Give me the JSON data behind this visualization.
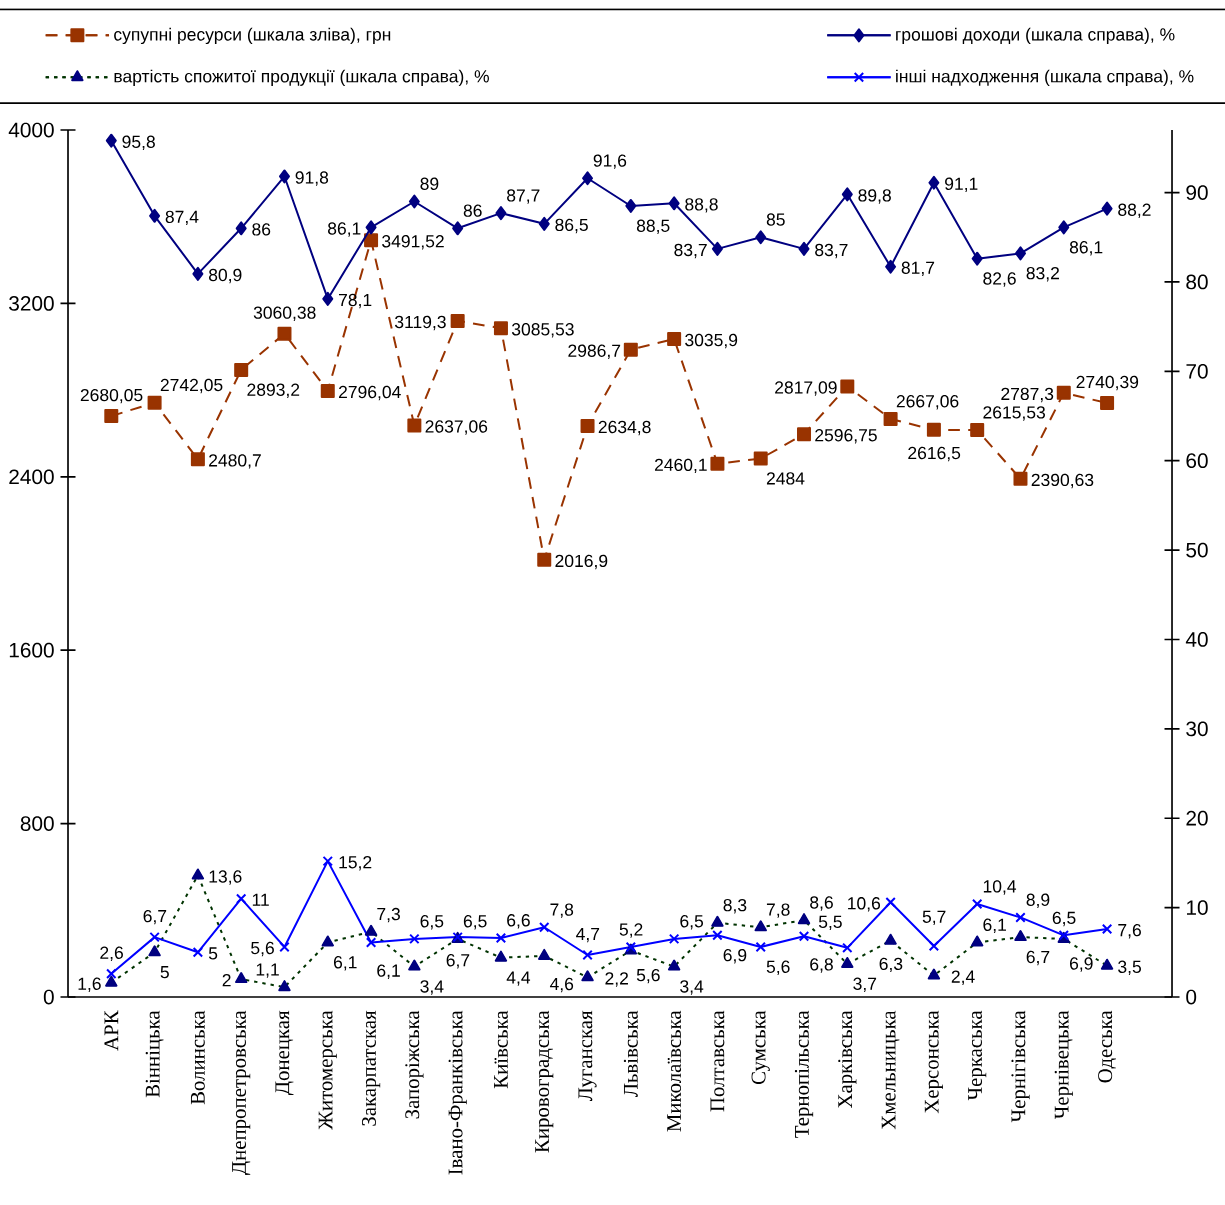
{
  "chart_data": {
    "type": "line",
    "categories": [
      "АРК",
      "Вінніцька",
      "Волинська",
      "Днепропетровська",
      "Донецкая",
      "Житомерська",
      "Закарпатская",
      "Запоріжська",
      "Івано-Франківська",
      "Київська",
      "Кировоградська",
      "Луганская",
      "Львівська",
      "Миколаївська",
      "Полтавська",
      "Сумська",
      "Тернопільська",
      "Харківська",
      "Хмельницька",
      "Херсонська",
      "Черкаська",
      "Чернігівська",
      "Чернівецька",
      "Одеська"
    ],
    "series": [
      {
        "name": "супупні ресурси (шкала зліва), грн",
        "color": "#993300",
        "marker": "square",
        "line_style": "dashed",
        "values": [
          2680.05,
          2742.05,
          2480.7,
          2893.2,
          3060.38,
          2796.04,
          3491.52,
          2637.06,
          3119.3,
          3085.53,
          2016.9,
          2634.8,
          2986.7,
          3035.9,
          2460.1,
          2484,
          2596.75,
          2817.09,
          2667.06,
          2616.5,
          2615.53,
          2390.63,
          2787.3,
          2740.39
        ],
        "value_labels": [
          "2680,05",
          "2742,05",
          "2480,7",
          "2893,2",
          "3060,38",
          "2796,04",
          "3491,52",
          "2637,06",
          "3119,3",
          "3085,53",
          "2016,9",
          "2634,8",
          "2986,7",
          "3035,9",
          "2460,1",
          "2484",
          "2596,75",
          "2817,09",
          "2667,06",
          "2616,5",
          "2615,53",
          "2390,63",
          "2787,3",
          "2740,39"
        ]
      },
      {
        "name": "грошові доходи (шкала справа), %",
        "color": "#000080",
        "marker": "diamond",
        "line_style": "solid",
        "axis": "y2",
        "values": [
          95.8,
          87.4,
          80.9,
          86,
          91.8,
          78.1,
          86.1,
          89,
          86,
          87.7,
          86.5,
          91.6,
          88.5,
          88.8,
          83.7,
          85,
          83.7,
          89.8,
          81.7,
          91.1,
          82.6,
          83.2,
          86.1,
          88.2
        ],
        "value_labels": [
          "95,8",
          "87,4",
          "80,9",
          "86",
          "91,8",
          "78,1",
          "86,1",
          "89",
          "86",
          "87,7",
          "86,5",
          "91,6",
          "88,5",
          "88,8",
          "83,7",
          "85",
          "83,7",
          "89,8",
          "81,7",
          "91,1",
          "82,6",
          "83,2",
          "86,1",
          "88,2"
        ]
      },
      {
        "name": "вартість спожитої продукції (шкала справа), %",
        "color": "#003300",
        "colors": [
          "#000080",
          "#000080",
          "#000080",
          "#000080",
          "#000080",
          "#000080",
          "#000080",
          "#000080",
          "#000080",
          "#000080",
          "#000080",
          "#000080",
          "#000080",
          "#000080",
          "#000080",
          "#000080",
          "#000080",
          "#000080",
          "#000080",
          "#000080",
          "#000080",
          "#000080",
          "#000080",
          "#000080"
        ],
        "marker": "triangle",
        "line_style": "dotted",
        "axis": "y2",
        "values": [
          1.6,
          5,
          13.6,
          2,
          1.1,
          6.1,
          7.3,
          3.4,
          6.5,
          4.4,
          4.6,
          2.2,
          5.2,
          3.4,
          8.3,
          7.8,
          8.6,
          3.7,
          6.3,
          2.4,
          6.1,
          6.7,
          6.5,
          3.5
        ],
        "value_labels": [
          "1,6",
          "5",
          "13,6",
          "2",
          "1,1",
          "6,1",
          "7,3",
          "3,4",
          "6,5",
          "4,4",
          "4,6",
          "2,2",
          "5,2",
          "3,4",
          "8,3",
          "7,8",
          "8,6",
          "3,7",
          "6,3",
          "2,4",
          "6,1",
          "6,7",
          "6,5",
          "3,5"
        ]
      },
      {
        "name": "інші надходження (шкала справа), %",
        "color": "#0000ff",
        "marker": "cross",
        "line_style": "solid",
        "axis": "y2",
        "values": [
          2.6,
          6.7,
          5,
          11,
          5.6,
          15.2,
          6.1,
          6.5,
          6.7,
          6.6,
          7.8,
          4.7,
          5.6,
          6.5,
          6.9,
          5.6,
          6.8,
          5.5,
          10.6,
          5.7,
          10.4,
          8.9,
          6.9,
          7.6
        ],
        "value_labels": [
          "2,6",
          "6,7",
          "5",
          "11",
          "5,6",
          "15,2",
          "6,1",
          "6,5",
          "6,7",
          "6,6",
          "7,8",
          "4,7",
          "5,6",
          "6,5",
          "6,9",
          "5,6",
          "6,8",
          "5,5",
          "10,6",
          "5,7",
          "10,4",
          "8,9",
          "6,9",
          "7,6"
        ]
      }
    ],
    "ylim": [
      0,
      4000
    ],
    "yticks": [
      0,
      800,
      1600,
      2400,
      3200,
      4000
    ],
    "y2lim": [
      0,
      97
    ],
    "y2ticks": [
      0,
      10,
      20,
      30,
      40,
      50,
      60,
      70,
      80,
      90
    ],
    "legend": "top"
  }
}
